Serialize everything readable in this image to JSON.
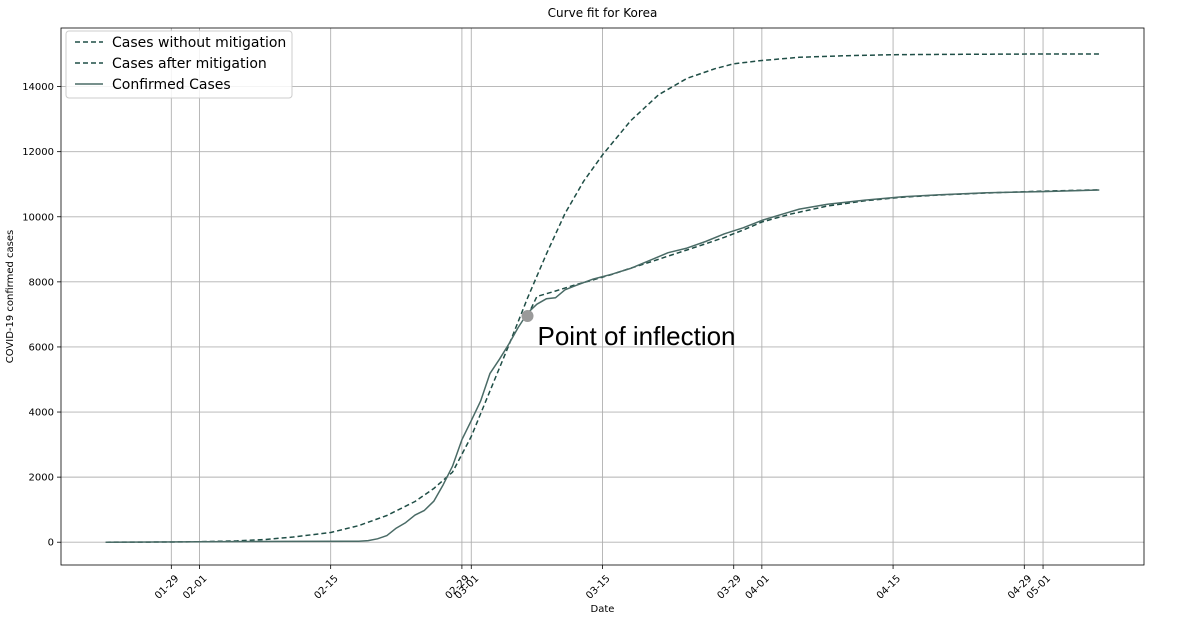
{
  "chart_data": {
    "type": "line",
    "title": "Curve fit for Korea",
    "xlabel": "Date",
    "ylabel": "COVID-19 confirmed cases",
    "ylim": [
      -700,
      15800
    ],
    "yticks": [
      0,
      2000,
      4000,
      6000,
      8000,
      10000,
      12000,
      14000
    ],
    "xticks": [
      "01-29",
      "02-01",
      "02-15",
      "02-29",
      "03-01",
      "03-15",
      "03-29",
      "04-01",
      "04-15",
      "04-29",
      "05-01"
    ],
    "xtick_rotation": 45,
    "x_start": "01-22",
    "x_end": "05-07",
    "grid": true,
    "legend_position": "top-left",
    "colors": {
      "without": "#1f4e46",
      "after": "#1f4e46",
      "confirmed": "#4a6b66",
      "marker": "#9a9a9a"
    },
    "series": [
      {
        "name": "Cases without mitigation",
        "style": "dashed",
        "x": [
          "01-22",
          "01-29",
          "02-01",
          "02-05",
          "02-08",
          "02-11",
          "02-15",
          "02-18",
          "02-21",
          "02-24",
          "02-26",
          "02-28",
          "03-01",
          "03-03",
          "03-05",
          "03-07",
          "03-09",
          "03-11",
          "03-13",
          "03-15",
          "03-18",
          "03-21",
          "03-24",
          "03-27",
          "03-29",
          "04-01",
          "04-05",
          "04-10",
          "04-15",
          "04-20",
          "04-25",
          "05-01",
          "05-07"
        ],
        "values": [
          2,
          8,
          15,
          40,
          85,
          160,
          300,
          510,
          820,
          1250,
          1650,
          2150,
          3250,
          4650,
          6050,
          7500,
          8850,
          10100,
          11100,
          11900,
          12950,
          13750,
          14250,
          14550,
          14700,
          14800,
          14900,
          14950,
          14980,
          14990,
          14995,
          15000,
          15000
        ]
      },
      {
        "name": "Cases after mitigation",
        "style": "dashed",
        "x": [
          "03-07",
          "03-08",
          "03-10",
          "03-12",
          "03-14",
          "03-16",
          "03-18",
          "03-20",
          "03-22",
          "03-24",
          "03-26",
          "03-28",
          "03-30",
          "04-01",
          "04-04",
          "04-08",
          "04-12",
          "04-16",
          "04-20",
          "04-25",
          "05-01",
          "05-07"
        ],
        "values": [
          6950,
          7550,
          7720,
          7900,
          8060,
          8230,
          8420,
          8600,
          8790,
          8980,
          9170,
          9370,
          9590,
          9840,
          10080,
          10330,
          10490,
          10600,
          10670,
          10730,
          10790,
          10830
        ]
      },
      {
        "name": "Confirmed Cases",
        "style": "solid",
        "x": [
          "01-22",
          "02-10",
          "02-17",
          "02-18",
          "02-19",
          "02-20",
          "02-21",
          "02-22",
          "02-23",
          "02-24",
          "02-25",
          "02-26",
          "02-27",
          "02-28",
          "02-29",
          "03-01",
          "03-02",
          "03-03",
          "03-04",
          "03-05",
          "03-06",
          "03-07",
          "03-08",
          "03-09",
          "03-10",
          "03-11",
          "03-12",
          "03-14",
          "03-16",
          "03-18",
          "03-20",
          "03-22",
          "03-24",
          "03-26",
          "03-28",
          "03-30",
          "04-01",
          "04-03",
          "04-05",
          "04-08",
          "04-12",
          "04-16",
          "04-20",
          "04-25",
          "05-01",
          "05-07"
        ],
        "values": [
          1,
          25,
          30,
          31,
          51,
          104,
          204,
          433,
          602,
          833,
          977,
          1261,
          1766,
          2337,
          3150,
          3736,
          4335,
          5186,
          5621,
          6088,
          6593,
          7041,
          7313,
          7478,
          7513,
          7755,
          7869,
          8086,
          8236,
          8413,
          8652,
          8897,
          9037,
          9241,
          9478,
          9661,
          9887,
          10062,
          10237,
          10384,
          10512,
          10613,
          10674,
          10738,
          10774,
          10822
        ]
      }
    ],
    "annotation": {
      "text": "Point of inflection",
      "x": "03-07",
      "y": 6950
    }
  }
}
